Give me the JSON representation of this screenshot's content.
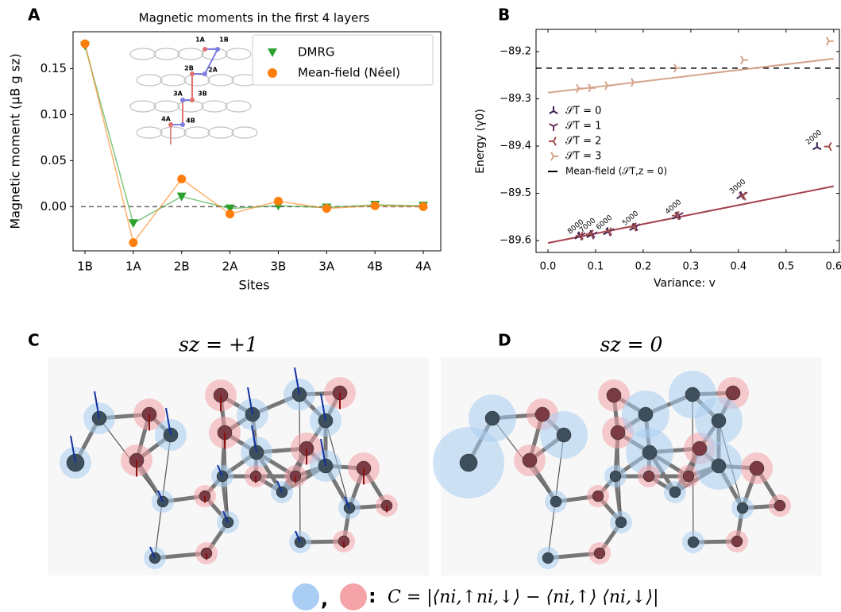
{
  "chart_data": [
    {
      "type": "line",
      "panel_label": "A",
      "title": "Magnetic moments in the first 4 layers",
      "x_label": "Sites",
      "y_label": "Magnetic moment (μB g sz)",
      "categories": [
        "1B",
        "1A",
        "2B",
        "2A",
        "3B",
        "3A",
        "4B",
        "4A"
      ],
      "series": [
        {
          "name": "DMRG",
          "color": "#2ca02c",
          "marker": "triangle-down",
          "values": [
            0.175,
            -0.018,
            0.011,
            -0.002,
            0.001,
            -0.001,
            0.002,
            0.001
          ]
        },
        {
          "name": "Mean-field (Néel)",
          "color": "#ff7f0e",
          "marker": "circle",
          "values": [
            0.177,
            -0.039,
            0.03,
            -0.008,
            0.006,
            -0.002,
            0.001,
            0.0
          ]
        }
      ],
      "ylim": [
        -0.048,
        0.19
      ],
      "yticks": [
        {
          "value": 0,
          "label": "0.00"
        },
        {
          "value": 0.05,
          "label": "0.05"
        },
        {
          "value": 0.1,
          "label": "0.10"
        },
        {
          "value": 0.15,
          "label": "0.15"
        }
      ],
      "reference_value": 0,
      "inset_labels": [
        "1A",
        "1B",
        "2A",
        "2B",
        "3A",
        "3B",
        "4A",
        "4B"
      ]
    },
    {
      "type": "scatter",
      "panel_label": "B",
      "x_label": "Variance: v",
      "y_label": "Energy (γ0)",
      "series": [
        {
          "name": "𝒮T = 0",
          "color": "#3b1f4f",
          "marker": "tri-down",
          "x": [
            0.065,
            0.09,
            0.125,
            0.18,
            0.27,
            0.405,
            0.565
          ],
          "values": [
            -89.591,
            -89.588,
            -89.582,
            -89.573,
            -89.549,
            -89.506,
            -89.402
          ]
        },
        {
          "name": "𝒮T = 1",
          "color": "#6b2d5c",
          "marker": "tri-up",
          "x": [
            0.07,
            0.095,
            0.13,
            0.185,
            0.275,
            0.41
          ],
          "values": [
            -89.589,
            -89.587,
            -89.58,
            -89.57,
            -89.546,
            -89.503
          ]
        },
        {
          "name": "𝒮T = 2",
          "color": "#a3504a",
          "marker": "tri-left",
          "x": [
            0.068,
            0.09,
            0.128,
            0.18,
            0.27,
            0.41,
            0.59
          ],
          "values": [
            -89.59,
            -89.586,
            -89.581,
            -89.571,
            -89.547,
            -89.506,
            -89.401
          ]
        },
        {
          "name": "𝒮T = 3",
          "color": "#d4a58a",
          "marker": "tri-right",
          "x": [
            0.065,
            0.09,
            0.125,
            0.18,
            0.27,
            0.41,
            0.59
          ],
          "values": [
            -89.278,
            -89.277,
            -89.272,
            -89.265,
            -89.235,
            -89.218,
            -89.178
          ]
        }
      ],
      "fits": [
        {
          "color": "#a3404e",
          "x": [
            0,
            0.6
          ],
          "values": [
            -89.605,
            -89.485
          ]
        },
        {
          "color": "#d4a58a",
          "x": [
            0,
            0.6
          ],
          "values": [
            -89.287,
            -89.215
          ]
        }
      ],
      "reference_line": {
        "name": "Mean-field (𝒮T,z = 0)",
        "value": -89.235
      },
      "bond_dimensions": [
        8000,
        7000,
        6000,
        5000,
        4000,
        3000,
        2000
      ],
      "xlim": [
        -0.025,
        0.612
      ],
      "xticks": [
        {
          "value": 0,
          "label": "0.0"
        },
        {
          "value": 0.1,
          "label": "0.1"
        },
        {
          "value": 0.2,
          "label": "0.2"
        },
        {
          "value": 0.3,
          "label": "0.3"
        },
        {
          "value": 0.4,
          "label": "0.4"
        },
        {
          "value": 0.5,
          "label": "0.5"
        },
        {
          "value": 0.6,
          "label": "0.6"
        }
      ],
      "ylim": [
        -89.625,
        -89.153
      ],
      "yticks": [
        {
          "value": -89.2,
          "label": "−89.2"
        },
        {
          "value": -89.3,
          "label": "−89.3"
        },
        {
          "value": -89.4,
          "label": "−89.4"
        },
        {
          "value": -89.5,
          "label": "−89.5"
        },
        {
          "value": -89.6,
          "label": "−89.6"
        }
      ]
    }
  ],
  "figure": {
    "panel_c": {
      "label": "C",
      "title": "sz = +1"
    },
    "panel_d": {
      "label": "D",
      "title": "sz = 0"
    },
    "caption_separator": ",",
    "caption_colon": ":",
    "caption_formula": "C = |⟨ni,↑ni,↓⟩ − ⟨ni,↑⟩ ⟨ni,↓⟩|"
  }
}
